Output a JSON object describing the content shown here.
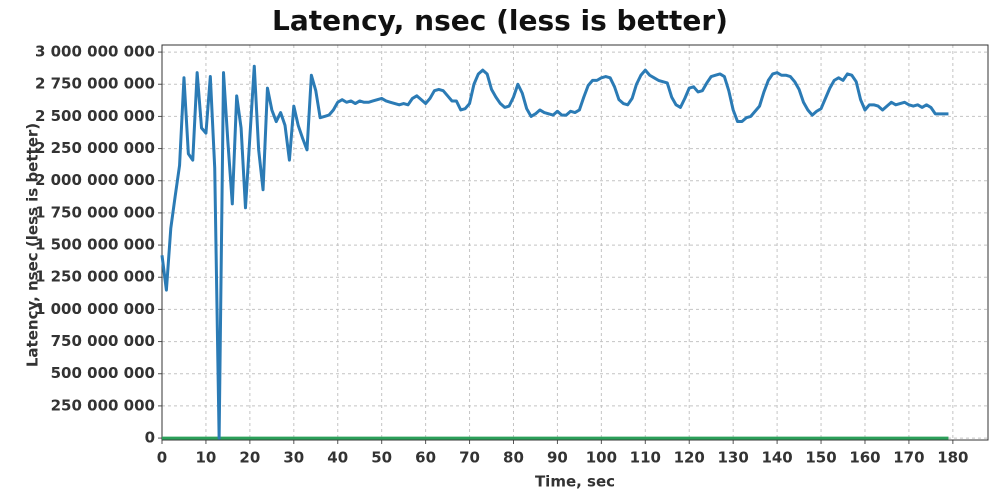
{
  "chart_data": {
    "type": "line",
    "title": "Latency, nsec (less is better)",
    "x_label": "Time, sec",
    "y_label": "Latency, nsec (less is better)",
    "xlim": [
      0,
      188
    ],
    "ylim": [
      -15000000,
      3055000000
    ],
    "xticks": [
      0,
      10,
      20,
      30,
      40,
      50,
      60,
      70,
      80,
      90,
      100,
      110,
      120,
      130,
      140,
      150,
      160,
      170,
      180
    ],
    "yticks": [
      0,
      {
        "value": 250000000,
        "label": "250 000 000"
      },
      {
        "value": 500000000,
        "label": "500 000 000"
      },
      {
        "value": 750000000,
        "label": "750 000 000"
      },
      {
        "value": 1000000000,
        "label": "1 000 000 000"
      },
      {
        "value": 1250000000,
        "label": "1 250 000 000"
      },
      {
        "value": 1500000000,
        "label": "1 500 000 000"
      },
      {
        "value": 1750000000,
        "label": "1 750 000 000"
      },
      {
        "value": 2000000000,
        "label": "2 000 000 000"
      },
      {
        "value": 2250000000,
        "label": "2 250 000 000"
      },
      {
        "value": 2500000000,
        "label": "2 500 000 000"
      },
      {
        "value": 2750000000,
        "label": "2 750 000 000"
      },
      {
        "value": 3000000000,
        "label": "3 000 000 000"
      }
    ],
    "grid": true,
    "x": [
      0,
      1,
      2,
      3,
      4,
      5,
      6,
      7,
      8,
      9,
      10,
      11,
      12,
      13,
      14,
      15,
      16,
      17,
      18,
      19,
      20,
      21,
      22,
      23,
      24,
      25,
      26,
      27,
      28,
      29,
      30,
      31,
      32,
      33,
      34,
      35,
      36,
      37,
      38,
      39,
      40,
      41,
      42,
      43,
      44,
      45,
      46,
      47,
      48,
      49,
      50,
      51,
      52,
      53,
      54,
      55,
      56,
      57,
      58,
      59,
      60,
      61,
      62,
      63,
      64,
      65,
      66,
      67,
      68,
      69,
      70,
      71,
      72,
      73,
      74,
      75,
      76,
      77,
      78,
      79,
      80,
      81,
      82,
      83,
      84,
      85,
      86,
      87,
      88,
      89,
      90,
      91,
      92,
      93,
      94,
      95,
      96,
      97,
      98,
      99,
      100,
      101,
      102,
      103,
      104,
      105,
      106,
      107,
      108,
      109,
      110,
      111,
      112,
      113,
      114,
      115,
      116,
      117,
      118,
      119,
      120,
      121,
      122,
      123,
      124,
      125,
      126,
      127,
      128,
      129,
      130,
      131,
      132,
      133,
      134,
      135,
      136,
      137,
      138,
      139,
      140,
      141,
      142,
      143,
      144,
      145,
      146,
      147,
      148,
      149,
      150,
      151,
      152,
      153,
      154,
      155,
      156,
      157,
      158,
      159,
      160,
      161,
      162,
      163,
      164,
      165,
      166,
      167,
      168,
      169,
      170,
      171,
      172,
      173,
      174,
      175,
      176,
      177,
      178,
      179
    ],
    "series": [
      {
        "color": "#2b7bb5",
        "values": [
          1420000000.0,
          1150000000.0,
          1630000000.0,
          1880000000.0,
          2120000000.0,
          2800000000.0,
          2210000000.0,
          2160000000.0,
          2840000000.0,
          2410000000.0,
          2370000000.0,
          2810000000.0,
          2100000000.0,
          0,
          2840000000.0,
          2300000000.0,
          1820000000.0,
          2660000000.0,
          2410000000.0,
          1790000000.0,
          2340000000.0,
          2890000000.0,
          2240000000.0,
          1930000000.0,
          2720000000.0,
          2550000000.0,
          2460000000.0,
          2530000000.0,
          2430000000.0,
          2160000000.0,
          2580000000.0,
          2430000000.0,
          2330000000.0,
          2240000000.0,
          2820000000.0,
          2700000000.0,
          2490000000.0,
          2500000000.0,
          2510000000.0,
          2550000000.0,
          2610000000.0,
          2630000000.0,
          2610000000.0,
          2620000000.0,
          2600000000.0,
          2620000000.0,
          2610000000.0,
          2610000000.0,
          2620000000.0,
          2630000000.0,
          2640000000.0,
          2620000000.0,
          2610000000.0,
          2600000000.0,
          2590000000.0,
          2600000000.0,
          2590000000.0,
          2640000000.0,
          2660000000.0,
          2630000000.0,
          2600000000.0,
          2640000000.0,
          2700000000.0,
          2710000000.0,
          2700000000.0,
          2660000000.0,
          2620000000.0,
          2620000000.0,
          2550000000.0,
          2560000000.0,
          2600000000.0,
          2750000000.0,
          2830000000.0,
          2860000000.0,
          2830000000.0,
          2710000000.0,
          2650000000.0,
          2600000000.0,
          2570000000.0,
          2580000000.0,
          2650000000.0,
          2750000000.0,
          2680000000.0,
          2560000000.0,
          2500000000.0,
          2520000000.0,
          2550000000.0,
          2530000000.0,
          2520000000.0,
          2510000000.0,
          2540000000.0,
          2510000000.0,
          2510000000.0,
          2540000000.0,
          2530000000.0,
          2550000000.0,
          2650000000.0,
          2740000000.0,
          2780000000.0,
          2780000000.0,
          2800000000.0,
          2810000000.0,
          2800000000.0,
          2730000000.0,
          2630000000.0,
          2600000000.0,
          2590000000.0,
          2640000000.0,
          2750000000.0,
          2820000000.0,
          2860000000.0,
          2820000000.0,
          2800000000.0,
          2780000000.0,
          2770000000.0,
          2760000000.0,
          2650000000.0,
          2590000000.0,
          2570000000.0,
          2640000000.0,
          2720000000.0,
          2730000000.0,
          2690000000.0,
          2700000000.0,
          2760000000.0,
          2810000000.0,
          2820000000.0,
          2830000000.0,
          2810000000.0,
          2700000000.0,
          2550000000.0,
          2460000000.0,
          2460000000.0,
          2490000000.0,
          2500000000.0,
          2540000000.0,
          2580000000.0,
          2690000000.0,
          2780000000.0,
          2830000000.0,
          2840000000.0,
          2820000000.0,
          2820000000.0,
          2810000000.0,
          2770000000.0,
          2710000000.0,
          2610000000.0,
          2550000000.0,
          2510000000.0,
          2540000000.0,
          2560000000.0,
          2640000000.0,
          2720000000.0,
          2780000000.0,
          2800000000.0,
          2780000000.0,
          2830000000.0,
          2820000000.0,
          2770000000.0,
          2630000000.0,
          2550000000.0,
          2590000000.0,
          2590000000.0,
          2580000000.0,
          2550000000.0,
          2580000000.0,
          2610000000.0,
          2590000000.0,
          2600000000.0,
          2610000000.0,
          2590000000.0,
          2580000000.0,
          2590000000.0,
          2570000000.0,
          2590000000.0,
          2570000000.0,
          2520000000.0,
          2520000000.0,
          2520000000.0,
          2520000000.0
        ]
      },
      {
        "color": "#2ca05a",
        "values": [
          0,
          0,
          0,
          0,
          0,
          0,
          0,
          0,
          0,
          0,
          0,
          0,
          0,
          0,
          0,
          0,
          0,
          0,
          0,
          0,
          0,
          0,
          0,
          0,
          0,
          0,
          0,
          0,
          0,
          0,
          0,
          0,
          0,
          0,
          0,
          0,
          0,
          0,
          0,
          0,
          0,
          0,
          0,
          0,
          0,
          0,
          0,
          0,
          0,
          0,
          0,
          0,
          0,
          0,
          0,
          0,
          0,
          0,
          0,
          0,
          0,
          0,
          0,
          0,
          0,
          0,
          0,
          0,
          0,
          0,
          0,
          0,
          0,
          0,
          0,
          0,
          0,
          0,
          0,
          0,
          0,
          0,
          0,
          0,
          0,
          0,
          0,
          0,
          0,
          0,
          0,
          0,
          0,
          0,
          0,
          0,
          0,
          0,
          0,
          0,
          0,
          0,
          0,
          0,
          0,
          0,
          0,
          0,
          0,
          0,
          0,
          0,
          0,
          0,
          0,
          0,
          0,
          0,
          0,
          0,
          0,
          0,
          0,
          0,
          0,
          0,
          0,
          0,
          0,
          0,
          0,
          0,
          0,
          0,
          0,
          0,
          0,
          0,
          0,
          0,
          0,
          0,
          0,
          0,
          0,
          0,
          0,
          0,
          0,
          0,
          0,
          0,
          0,
          0,
          0,
          0,
          0,
          0,
          0,
          0,
          0,
          0,
          0,
          0,
          0,
          0,
          0,
          0,
          0,
          0,
          0,
          0,
          0,
          0,
          0,
          0,
          0,
          0,
          0,
          0
        ]
      }
    ]
  }
}
